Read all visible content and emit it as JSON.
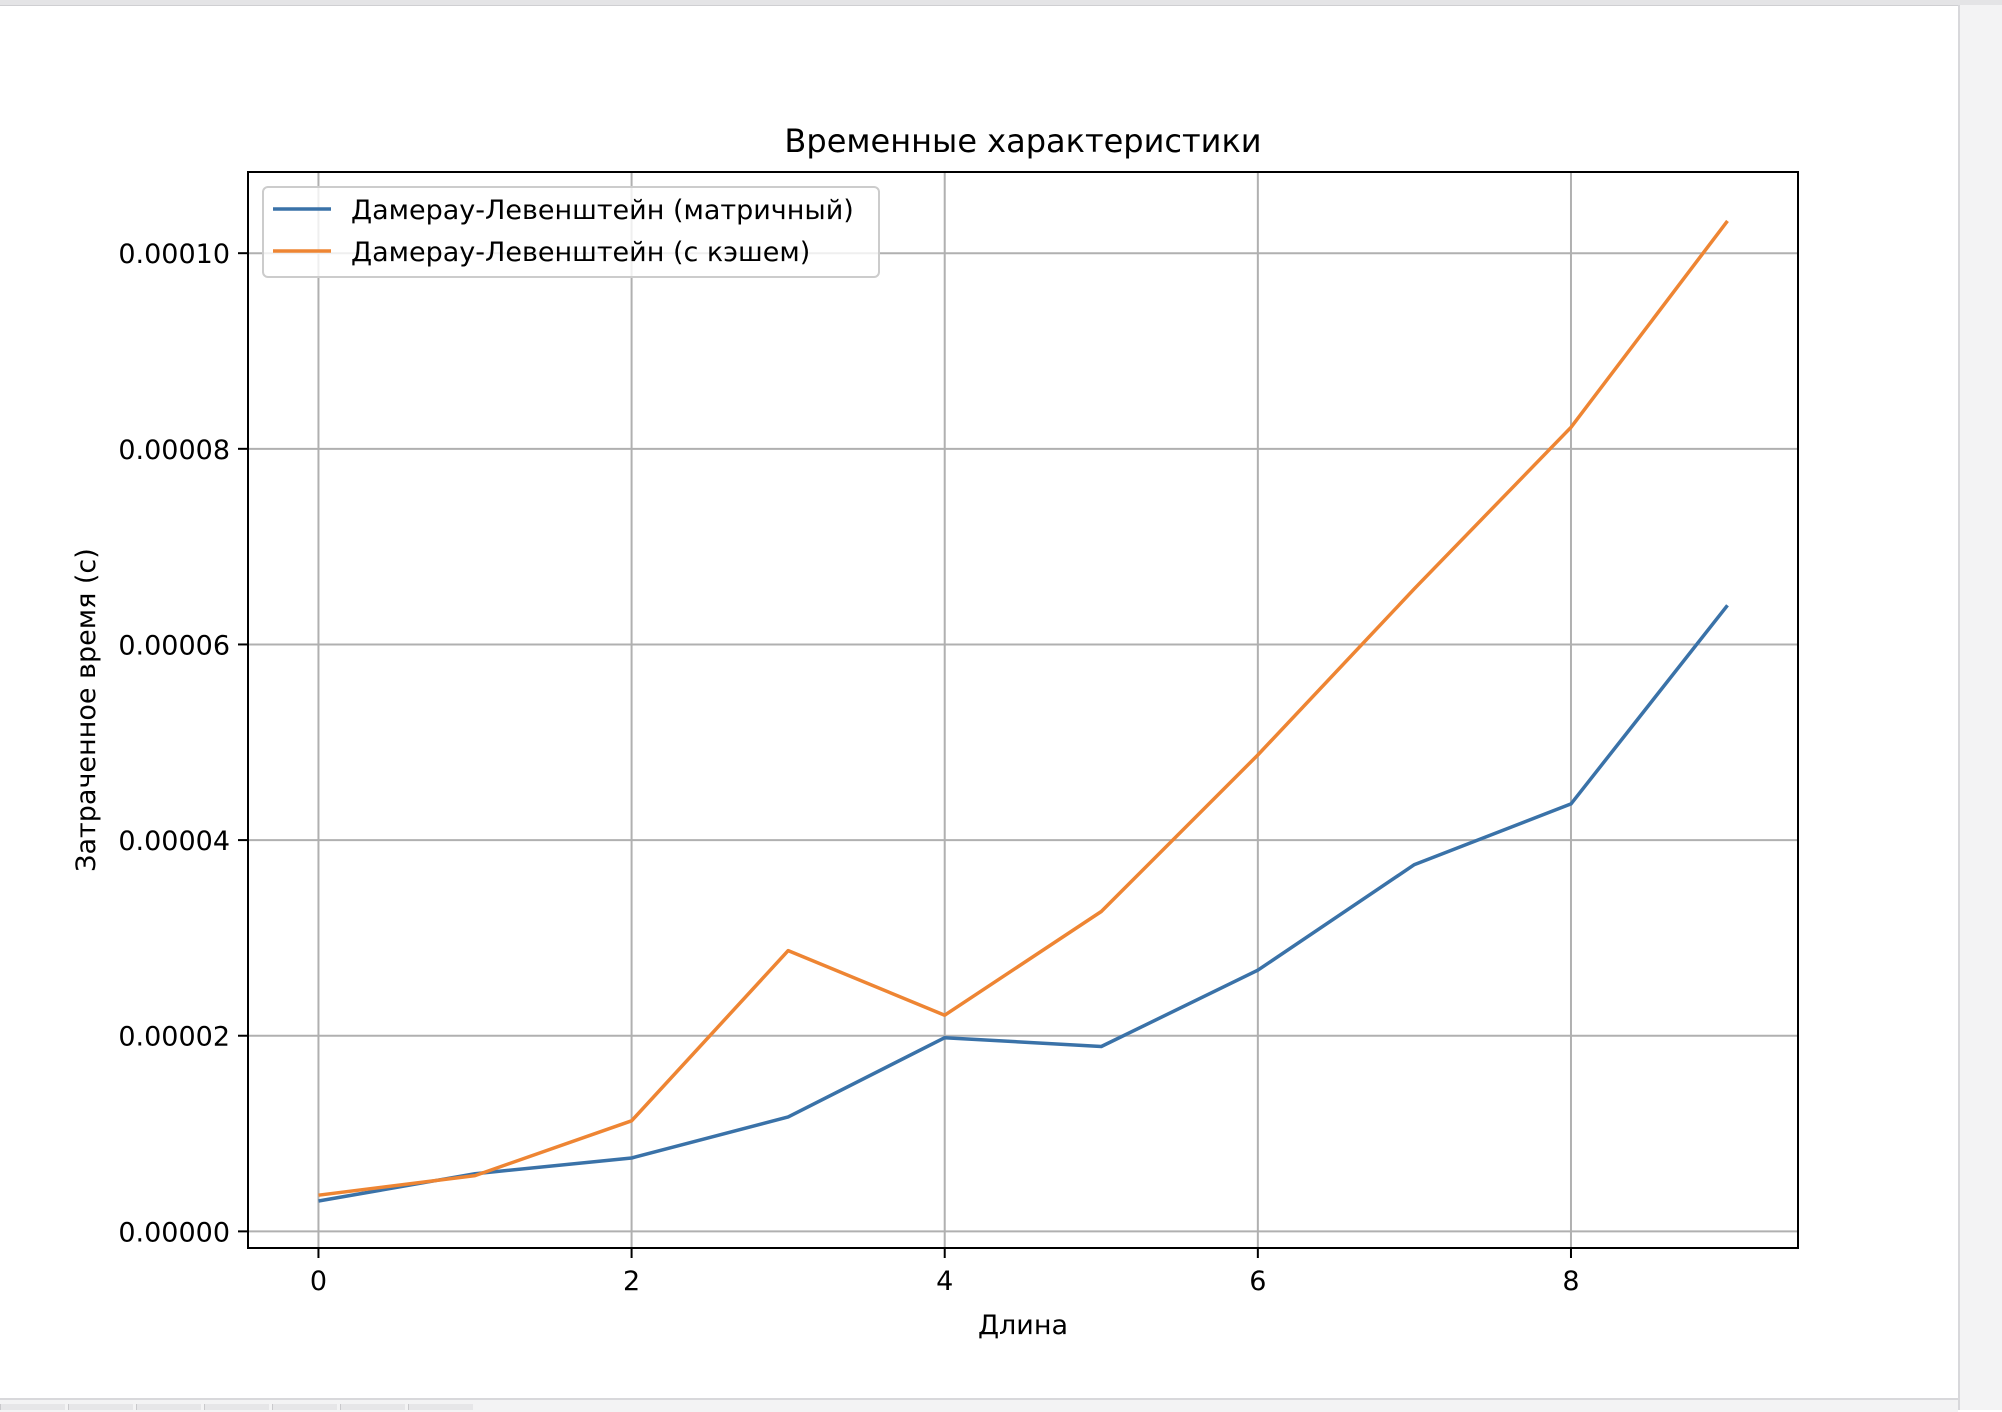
{
  "chart_data": {
    "type": "line",
    "title": "Временные характеристики",
    "xlabel": "Длина",
    "ylabel": "Затраченное время (с)",
    "xlim": [
      -0.45,
      9.45
    ],
    "ylim": [
      -1.7e-06,
      0.0001083
    ],
    "x_ticks": [
      0,
      2,
      4,
      6,
      8
    ],
    "x_tick_labels": [
      "0",
      "2",
      "4",
      "6",
      "8"
    ],
    "y_ticks": [
      0,
      2e-05,
      4e-05,
      6e-05,
      8e-05,
      0.0001
    ],
    "y_tick_labels": [
      "0.00000",
      "0.00002",
      "0.00004",
      "0.00006",
      "0.00008",
      "0.00010"
    ],
    "grid": true,
    "legend_position": "top-left",
    "x": [
      0,
      1,
      2,
      3,
      4,
      5,
      6,
      7,
      8,
      9
    ],
    "series": [
      {
        "name": "Дамерау-Левенштейн (матричный)",
        "color": "#3a72a8",
        "values": [
          3.1e-06,
          5.9e-06,
          7.5e-06,
          1.17e-05,
          1.98e-05,
          1.89e-05,
          2.67e-05,
          3.75e-05,
          4.37e-05,
          6.4e-05
        ]
      },
      {
        "name": "Дамерау-Левенштейн (с кэшем)",
        "color": "#ee8533",
        "values": [
          3.7e-06,
          5.7e-06,
          1.13e-05,
          2.87e-05,
          2.21e-05,
          3.27e-05,
          4.87e-05,
          6.57e-05,
          8.22e-05,
          0.0001033
        ]
      }
    ]
  }
}
